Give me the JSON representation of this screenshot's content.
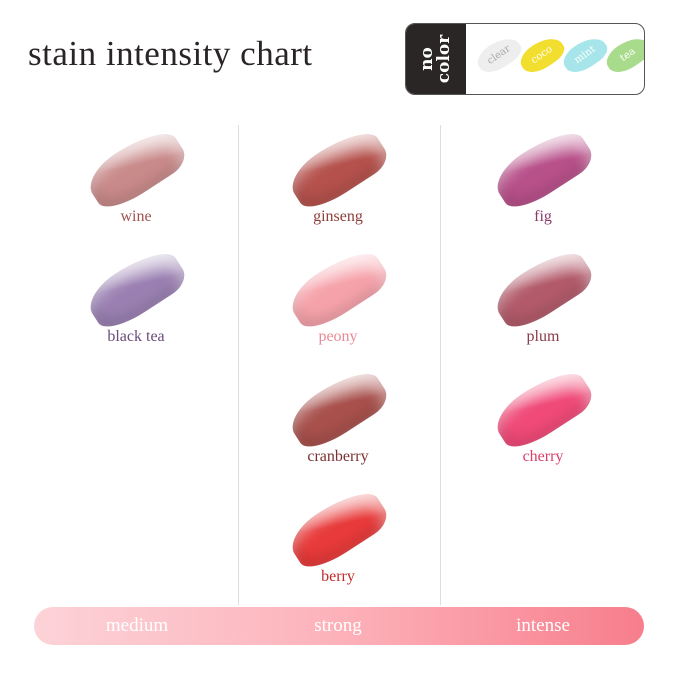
{
  "title": "stain intensity chart",
  "no_color": {
    "label": "no\ncolor",
    "items": [
      {
        "name": "clear",
        "color": "#eeeeee"
      },
      {
        "name": "coco",
        "color": "#f2de2e"
      },
      {
        "name": "mint",
        "color": "#a6e6ea"
      },
      {
        "name": "tea",
        "color": "#a8dc8c"
      }
    ]
  },
  "columns": [
    {
      "level": "medium",
      "shades": [
        {
          "name": "wine",
          "color": "#c98a8a",
          "label_color": "#a0524f"
        },
        {
          "name": "black tea",
          "color": "#9a80b2",
          "label_color": "#6a4a7a"
        }
      ]
    },
    {
      "level": "strong",
      "shades": [
        {
          "name": "ginseng",
          "color": "#b5514c",
          "label_color": "#8e3d38"
        },
        {
          "name": "peony",
          "color": "#f6a2aa",
          "label_color": "#e88a96"
        },
        {
          "name": "cranberry",
          "color": "#a8504c",
          "label_color": "#7a3030"
        },
        {
          "name": "berry",
          "color": "#e83a3a",
          "label_color": "#c02a2a"
        }
      ]
    },
    {
      "level": "intense",
      "shades": [
        {
          "name": "fig",
          "color": "#b8508a",
          "label_color": "#8a3a6a"
        },
        {
          "name": "plum",
          "color": "#b25a6a",
          "label_color": "#8a3a4a"
        },
        {
          "name": "cherry",
          "color": "#f04a78",
          "label_color": "#d8406a"
        }
      ]
    }
  ]
}
